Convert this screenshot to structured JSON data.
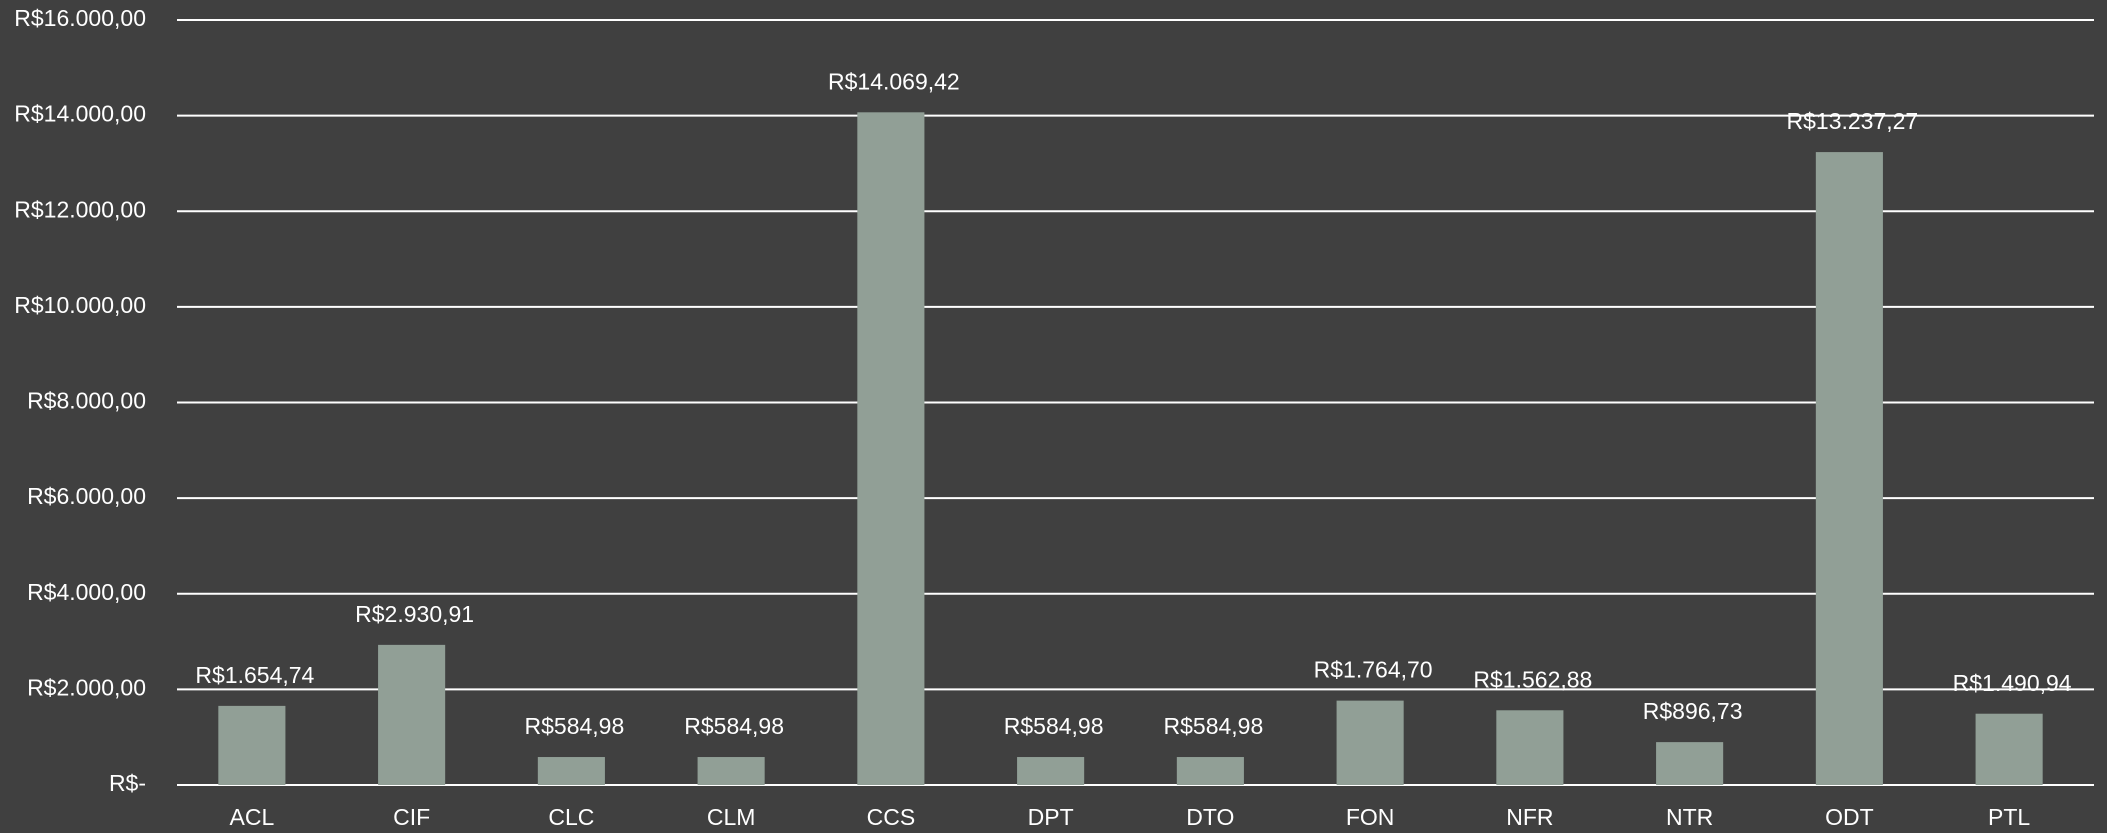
{
  "chart_data": {
    "type": "bar",
    "categories": [
      "ACL",
      "CIF",
      "CLC",
      "CLM",
      "CCS",
      "DPT",
      "DTO",
      "FON",
      "NFR",
      "NTR",
      "ODT",
      "PTL"
    ],
    "values": [
      1654.74,
      2930.91,
      584.98,
      584.98,
      14069.42,
      584.98,
      584.98,
      1764.7,
      1562.88,
      896.73,
      13237.27,
      1490.94
    ],
    "value_labels": [
      "R$1.654,74",
      "R$2.930,91",
      "R$584,98",
      "R$584,98",
      "R$14.069,42",
      "R$584,98",
      "R$584,98",
      "R$1.764,70",
      "R$1.562,88",
      "R$896,73",
      "R$13.237,27",
      "R$1.490,94"
    ],
    "color": "#919f96",
    "ylim": [
      0,
      16000
    ],
    "yticks": [
      {
        "value": 0,
        "label": "R$-"
      },
      {
        "value": 2000,
        "label": "R$2.000,00"
      },
      {
        "value": 4000,
        "label": "R$4.000,00"
      },
      {
        "value": 6000,
        "label": "R$6.000,00"
      },
      {
        "value": 8000,
        "label": "R$8.000,00"
      },
      {
        "value": 10000,
        "label": "R$10.000,00"
      },
      {
        "value": 12000,
        "label": "R$12.000,00"
      },
      {
        "value": 14000,
        "label": "R$14.000,00"
      },
      {
        "value": 16000,
        "label": "R$16.000,00"
      }
    ],
    "grid": true
  }
}
